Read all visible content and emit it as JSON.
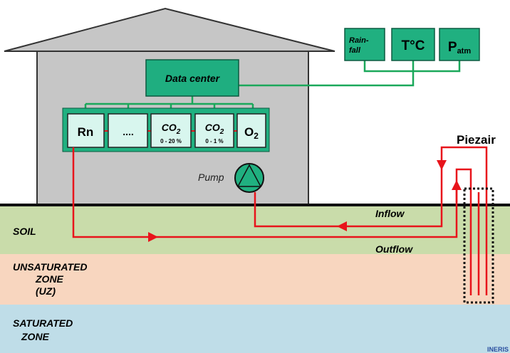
{
  "house": {
    "data_center": "Data center",
    "sensors": [
      {
        "main": "Rn"
      },
      {
        "main": "...."
      },
      {
        "main": "CO",
        "sub": "2",
        "range": "0 - 20 %"
      },
      {
        "main": "CO",
        "sub": "2",
        "range": "0 - 1 %"
      },
      {
        "main": "O",
        "sub": "2"
      }
    ],
    "pump": "Pump"
  },
  "weather": [
    {
      "lines": [
        "Rain-",
        "fall"
      ]
    },
    {
      "main": "T°C"
    },
    {
      "main": "P",
      "sub": "atm"
    }
  ],
  "piezair": "Piezair",
  "flows": {
    "inflow": "Inflow",
    "outflow": "Outflow"
  },
  "zones": {
    "soil": [
      "SOIL"
    ],
    "unsaturated": [
      "UNSATURATED",
      "ZONE",
      "(UZ)"
    ],
    "saturated": [
      "SATURATED",
      "ZONE"
    ]
  },
  "credit": "INERIS"
}
